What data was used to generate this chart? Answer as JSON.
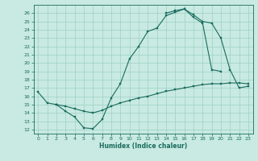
{
  "xlabel": "Humidex (Indice chaleur)",
  "xlim": [
    -0.5,
    23.5
  ],
  "ylim": [
    11.5,
    27
  ],
  "yticks": [
    12,
    13,
    14,
    15,
    16,
    17,
    18,
    19,
    20,
    21,
    22,
    23,
    24,
    25,
    26
  ],
  "xticks": [
    0,
    1,
    2,
    3,
    4,
    5,
    6,
    7,
    8,
    9,
    10,
    11,
    12,
    13,
    14,
    15,
    16,
    17,
    18,
    19,
    20,
    21,
    22,
    23
  ],
  "bg_color": "#c8eae2",
  "grid_color": "#9ecfc5",
  "line_color": "#1a6b5e",
  "line1_x": [
    0,
    1,
    2,
    3,
    4,
    5,
    6,
    7,
    8,
    9,
    10,
    11,
    12,
    13,
    14,
    15,
    16,
    17,
    18,
    19,
    20
  ],
  "line1_y": [
    16.5,
    15.2,
    15.0,
    14.2,
    13.5,
    12.2,
    12.1,
    13.2,
    15.8,
    17.5,
    20.5,
    22.0,
    23.8,
    24.2,
    25.7,
    26.1,
    26.5,
    25.5,
    24.8,
    19.2,
    19.0
  ],
  "line2_x": [
    14,
    15,
    16,
    17,
    18,
    19,
    20,
    21,
    22,
    23
  ],
  "line2_y": [
    26.0,
    26.3,
    26.5,
    25.8,
    25.0,
    24.8,
    23.0,
    19.2,
    17.0,
    17.2
  ],
  "line3_x": [
    2,
    3,
    4,
    5,
    6,
    7,
    8,
    9,
    10,
    11,
    12,
    13,
    14,
    15,
    16,
    17,
    18,
    19,
    20,
    21,
    22,
    23
  ],
  "line3_y": [
    15.0,
    14.8,
    14.5,
    14.2,
    14.0,
    14.3,
    14.8,
    15.2,
    15.5,
    15.8,
    16.0,
    16.3,
    16.6,
    16.8,
    17.0,
    17.2,
    17.4,
    17.5,
    17.5,
    17.6,
    17.6,
    17.5
  ]
}
